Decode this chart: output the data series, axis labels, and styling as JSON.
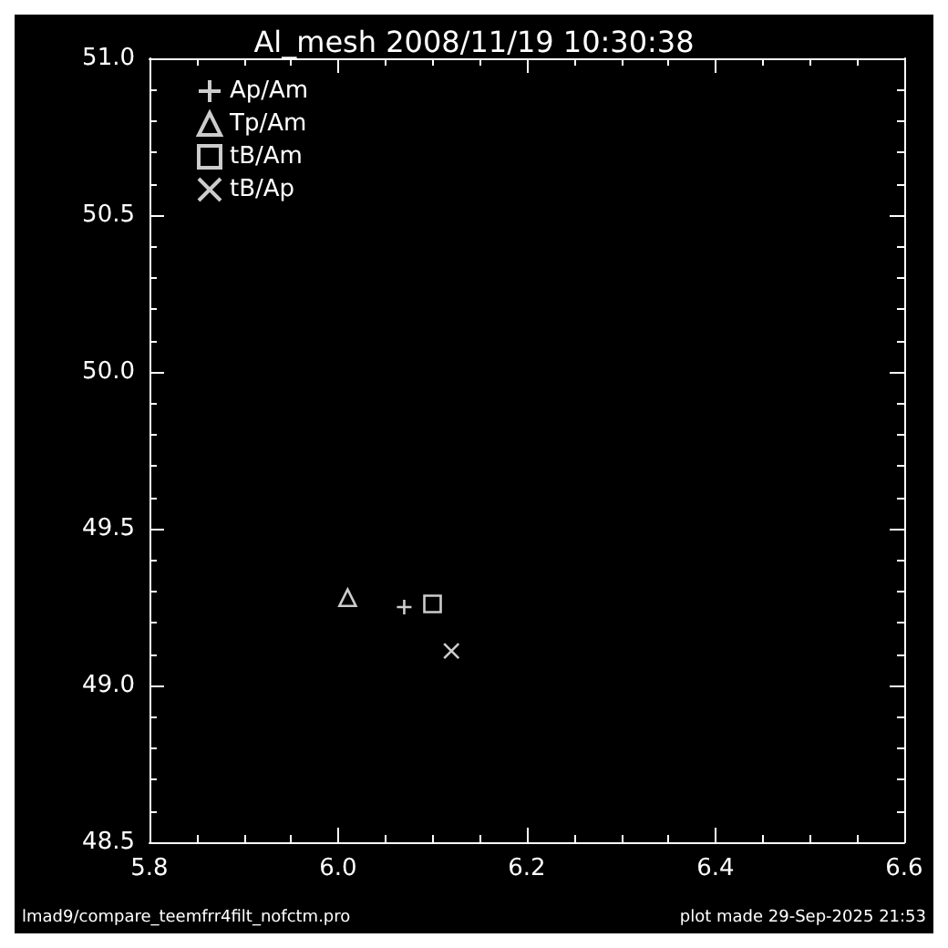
{
  "chart_data": {
    "type": "scatter",
    "title": "Al_mesh 2008/11/19 10:30:38",
    "xlim": [
      5.8,
      6.6
    ],
    "xticks": [
      5.8,
      {
        "value": 6.0,
        "label": "6.0"
      },
      6.2,
      6.4,
      6.6
    ],
    "ylim": [
      48.5,
      51.0
    ],
    "yticks": [
      48.5,
      {
        "value": 49.0,
        "label": "49.0"
      },
      49.5,
      {
        "value": 50.0,
        "label": "50.0"
      },
      50.5,
      {
        "value": 51.0,
        "label": "51.0"
      }
    ],
    "grid": false,
    "legend": "top left",
    "series": [
      {
        "name": "Ap/Am",
        "color": "#ffffff",
        "marker": "plus",
        "x": [
          6.07
        ],
        "values": [
          49.25
        ]
      },
      {
        "name": "Tp/Am",
        "color": "#ffffff",
        "marker": "triangle",
        "x": [
          6.01
        ],
        "values": [
          49.28
        ]
      },
      {
        "name": "tB/Am",
        "color": "#ffffff",
        "marker": "square",
        "x": [
          6.1
        ],
        "values": [
          49.26
        ]
      },
      {
        "name": "tB/Ap",
        "color": "#ffffff",
        "marker": "cross",
        "x": [
          6.12
        ],
        "values": [
          49.11
        ]
      }
    ],
    "annotations": [
      "lmad9/compare_teemfrr4filt_nofctm.pro",
      "plot made 29-Sep-2025 21:53"
    ]
  }
}
